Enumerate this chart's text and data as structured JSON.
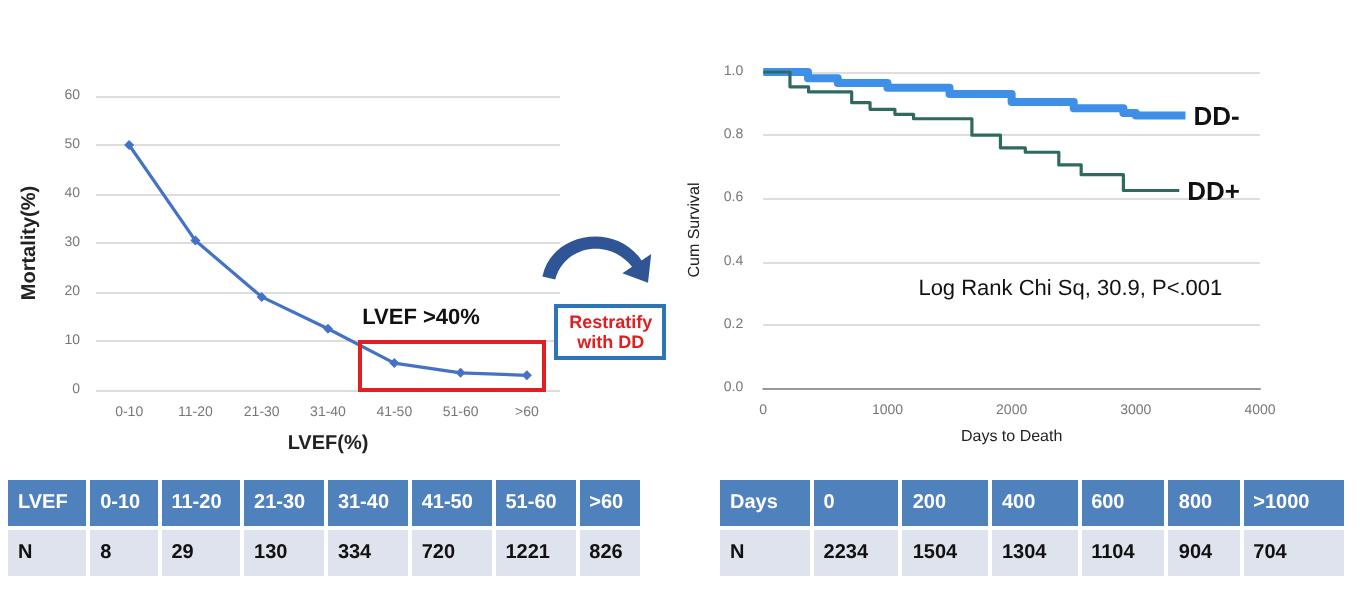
{
  "chart_data": [
    {
      "type": "line",
      "xlabel": "LVEF(%)",
      "ylabel": "Mortality(%)",
      "categories": [
        "0-10",
        "11-20",
        "21-30",
        "31-40",
        "41-50",
        "51-60",
        ">60"
      ],
      "series": [
        {
          "color": "#4472c4",
          "values": [
            50,
            30.5,
            19,
            12.5,
            5.5,
            3.5,
            3
          ]
        }
      ],
      "ylim": [
        0,
        60
      ],
      "yticks": [
        0,
        10,
        20,
        30,
        40,
        50,
        60
      ],
      "grid": "y",
      "marker": "diamond",
      "line_style": "solid",
      "annotations": [
        "LVEF >40%",
        "Restratify with DD",
        "LVEF",
        "N",
        "8",
        "29",
        "130",
        "334",
        "720",
        "1221",
        "826"
      ]
    },
    {
      "type": "step",
      "xlabel": "Days to Death",
      "ylabel": "Cum Survival",
      "series": [
        {
          "name": "DD-",
          "color": "#3d8fe8",
          "x": [
            0,
            360,
            600,
            1000,
            1500,
            2000,
            2500,
            2900,
            3000,
            3400
          ],
          "values": [
            1.0,
            0.98,
            0.965,
            0.95,
            0.93,
            0.905,
            0.885,
            0.87,
            0.862,
            0.862
          ]
        },
        {
          "name": "DD+",
          "color": "#2e6b5e",
          "x": [
            0,
            215,
            365,
            712,
            860,
            1060,
            1210,
            1680,
            1910,
            2110,
            2380,
            2560,
            2900,
            3350
          ],
          "values": [
            1.0,
            0.953,
            0.937,
            0.903,
            0.882,
            0.866,
            0.852,
            0.8,
            0.76,
            0.746,
            0.706,
            0.675,
            0.625,
            0.625
          ]
        }
      ],
      "xlim": [
        0,
        4000
      ],
      "xticks": [
        0,
        1000,
        2000,
        3000,
        4000
      ],
      "ylim": [
        0,
        1
      ],
      "yticks": [
        {
          "value": 0,
          "label": "0.0"
        },
        {
          "value": 0.2,
          "label": "0.2"
        },
        {
          "value": 0.4,
          "label": "0.4"
        },
        {
          "value": 0.6,
          "label": "0.6"
        },
        {
          "value": 0.8,
          "label": "0.8"
        },
        {
          "value": 1,
          "label": "1.0"
        }
      ],
      "grid": "y",
      "line_style": "solid",
      "annotations": [
        "Log Rank Chi Sq, 30.9, P<.001",
        "Days",
        "N",
        "0",
        "200",
        "400",
        "600",
        "800",
        ">1000",
        "2234",
        "1504",
        "1304",
        "1104",
        "904",
        "704"
      ]
    }
  ]
}
